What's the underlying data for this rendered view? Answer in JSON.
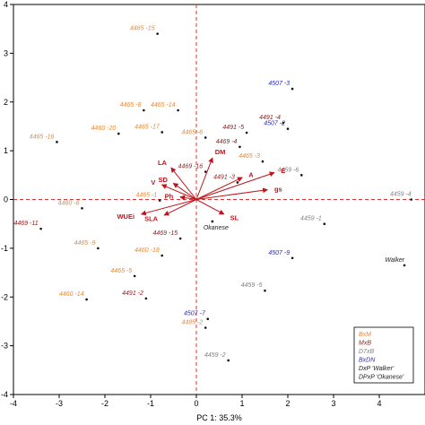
{
  "chart_data": {
    "type": "scatter",
    "subtype": "pca-biplot",
    "xlabel": "PC 1: 35.3%",
    "ylabel": "",
    "xlim": [
      -4,
      5
    ],
    "ylim": [
      -4,
      4
    ],
    "xticks": [
      -4,
      -3,
      -2,
      -1,
      0,
      1,
      2,
      3,
      4
    ],
    "yticks": [
      -4,
      -3,
      -2,
      -1,
      0,
      1,
      2,
      3,
      4
    ],
    "reference_lines": {
      "x": 0,
      "y": 0,
      "color": "#e03030",
      "style": "dashed"
    },
    "groups": [
      {
        "key": "BxM",
        "label": "BxM",
        "color": "#e08a3c"
      },
      {
        "key": "MxB",
        "label": "MxB",
        "color": "#8b1a1a"
      },
      {
        "key": "D7xB",
        "label": "D7xB",
        "color": "#808080"
      },
      {
        "key": "BxDN",
        "label": "BxDN",
        "color": "#2b2bb0"
      },
      {
        "key": "DxPW",
        "label": "DxP 'Walker'",
        "color": "#222222"
      },
      {
        "key": "DPxPO",
        "label": "DPxP 'Okanese'",
        "color": "#222222"
      }
    ],
    "legend_position": "bottom-right",
    "points": [
      {
        "label": "4465 -15",
        "x": -0.85,
        "y": 3.4,
        "group": "BxM"
      },
      {
        "label": "4460 -20",
        "x": -1.7,
        "y": 1.35,
        "group": "BxM"
      },
      {
        "label": "4465 -8",
        "x": -1.15,
        "y": 1.83,
        "group": "BxM"
      },
      {
        "label": "4465 -14",
        "x": -0.4,
        "y": 1.83,
        "group": "BxM"
      },
      {
        "label": "4465 -16",
        "x": -3.05,
        "y": 1.18,
        "group": "BxM"
      },
      {
        "label": "4465 -17",
        "x": -0.75,
        "y": 1.38,
        "group": "BxM"
      },
      {
        "label": "4465 -6",
        "x": 0.2,
        "y": 1.27,
        "group": "BxM"
      },
      {
        "label": "4460 -6",
        "x": -2.5,
        "y": -0.18,
        "group": "BxM"
      },
      {
        "label": "4465 -9",
        "x": -2.15,
        "y": -1.0,
        "group": "BxM"
      },
      {
        "label": "4465 -5",
        "x": -1.35,
        "y": -1.57,
        "group": "BxM"
      },
      {
        "label": "4460 -18",
        "x": -0.75,
        "y": -1.15,
        "group": "BxM"
      },
      {
        "label": "4460 -14",
        "x": -2.4,
        "y": -2.05,
        "group": "BxM"
      },
      {
        "label": "4465 -1",
        "x": -0.8,
        "y": -0.02,
        "group": "BxM"
      },
      {
        "label": "4485 -2",
        "x": 0.2,
        "y": -2.63,
        "group": "BxM"
      },
      {
        "label": "4465 -3",
        "x": 1.45,
        "y": 0.78,
        "group": "BxM"
      },
      {
        "label": "4491 -5",
        "x": 1.1,
        "y": 1.37,
        "group": "MxB"
      },
      {
        "label": "4491 -4",
        "x": 1.9,
        "y": 1.57,
        "group": "MxB"
      },
      {
        "label": "4469 -4",
        "x": 0.95,
        "y": 1.08,
        "group": "MxB"
      },
      {
        "label": "4469 -16",
        "x": 0.2,
        "y": 0.57,
        "group": "MxB"
      },
      {
        "label": "4491 -3",
        "x": 0.9,
        "y": 0.35,
        "group": "MxB"
      },
      {
        "label": "4469 -11",
        "x": -3.4,
        "y": -0.6,
        "group": "MxB"
      },
      {
        "label": "4469 -15",
        "x": -0.35,
        "y": -0.8,
        "group": "MxB"
      },
      {
        "label": "4491 -2",
        "x": -1.1,
        "y": -2.03,
        "group": "MxB"
      },
      {
        "label": "4459 -6",
        "x": 2.3,
        "y": 0.5,
        "group": "D7xB"
      },
      {
        "label": "4459 -4",
        "x": 4.7,
        "y": 0.0,
        "group": "D7xB"
      },
      {
        "label": "4459 -1",
        "x": 2.8,
        "y": -0.5,
        "group": "D7xB"
      },
      {
        "label": "4459 -5",
        "x": 1.5,
        "y": -1.87,
        "group": "D7xB"
      },
      {
        "label": "4459 -2",
        "x": 0.7,
        "y": -3.3,
        "group": "D7xB"
      },
      {
        "label": "4507 -3",
        "x": 2.1,
        "y": 2.27,
        "group": "BxDN"
      },
      {
        "label": "4507 -2",
        "x": 2.0,
        "y": 1.45,
        "group": "BxDN"
      },
      {
        "label": "4507 -9",
        "x": 2.1,
        "y": -1.2,
        "group": "BxDN"
      },
      {
        "label": "4507 -7",
        "x": 0.25,
        "y": -2.45,
        "group": "BxDN"
      },
      {
        "label": "Walker",
        "x": 4.55,
        "y": -1.35,
        "group": "DxPW"
      },
      {
        "label": "Okanese",
        "x": 0.35,
        "y": -0.45,
        "group": "DPxPO"
      }
    ],
    "vectors": [
      {
        "label": "DM",
        "x": 0.35,
        "y": 0.85
      },
      {
        "label": "LA",
        "x": -0.55,
        "y": 0.65
      },
      {
        "label": "A",
        "x": 1.0,
        "y": 0.45
      },
      {
        "label": "E",
        "x": 1.7,
        "y": 0.55
      },
      {
        "label": "gs",
        "x": 1.55,
        "y": 0.2
      },
      {
        "label": "SD",
        "x": -0.5,
        "y": 0.33
      },
      {
        "label": "V",
        "x": -0.75,
        "y": 0.3
      },
      {
        "label": "Ph",
        "x": -0.35,
        "y": 0.05
      },
      {
        "label": "WUEi",
        "x": -1.2,
        "y": -0.3
      },
      {
        "label": "SLA",
        "x": -0.7,
        "y": -0.32
      },
      {
        "label": "SL",
        "x": 0.6,
        "y": -0.3
      }
    ]
  }
}
